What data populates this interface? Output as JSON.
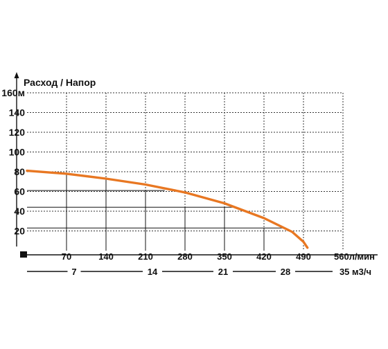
{
  "chart_data": {
    "type": "line",
    "title": "Расход / Напор",
    "y_axis": {
      "label": "м",
      "ticks": [
        20,
        40,
        60,
        80,
        100,
        120,
        140,
        160
      ],
      "tick_labels": [
        "20",
        "40",
        "60",
        "80",
        "100",
        "120",
        "140",
        "160м"
      ],
      "range": [
        0,
        160
      ]
    },
    "x_axis": {
      "unit": "л/мин",
      "ticks": [
        70,
        140,
        210,
        280,
        350,
        420,
        490,
        560
      ],
      "tick_labels": [
        "70",
        "140",
        "210",
        "280",
        "350",
        "420",
        "490",
        "560л/мин"
      ],
      "range": [
        0,
        560
      ]
    },
    "x2_axis": {
      "unit": "м3/ч",
      "ticks": [
        7,
        14,
        21,
        28,
        35
      ],
      "tick_labels": [
        "7",
        "14",
        "21",
        "28",
        "35 м3/ч"
      ]
    },
    "grid": true,
    "series": [
      {
        "color": "#E87722",
        "x": [
          0,
          70,
          140,
          210,
          280,
          350,
          420,
          470,
          490,
          497
        ],
        "y": [
          81,
          78,
          73,
          67,
          59,
          48,
          33,
          19,
          9,
          3
        ]
      }
    ],
    "reference_lines": [
      {
        "x": 244,
        "y": 61
      },
      {
        "x": 367,
        "y": 44
      },
      {
        "x": 453,
        "y": 23
      }
    ]
  }
}
